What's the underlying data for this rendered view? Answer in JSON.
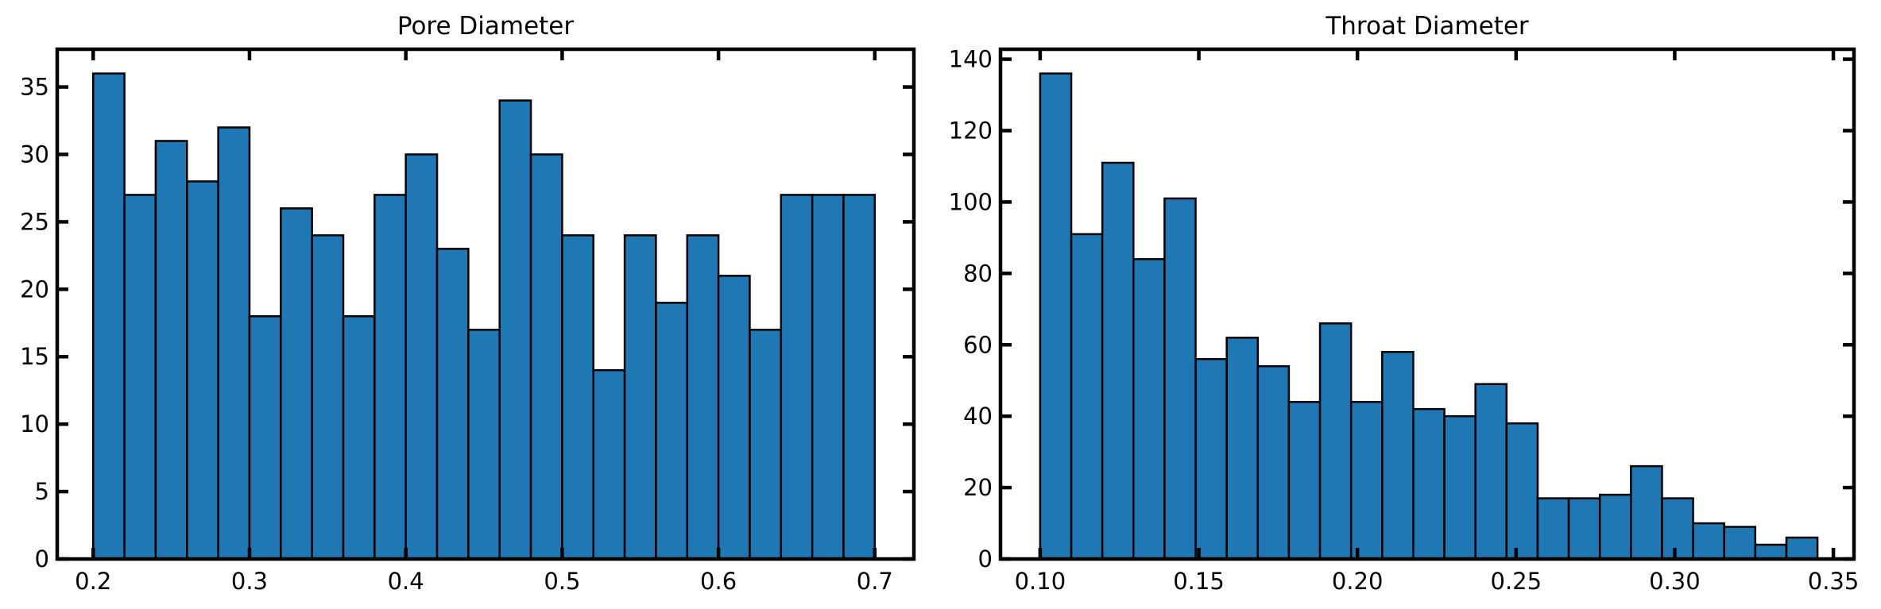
{
  "chart_data": [
    {
      "type": "bar",
      "title": "Pore Diameter",
      "xlabel": "",
      "ylabel": "",
      "xlim": [
        0.177,
        0.725
      ],
      "ylim": [
        0,
        37.8
      ],
      "bar_color": "#1f77b4",
      "edge_color": "#000000",
      "grid": false,
      "bin_edges": [
        0.2,
        0.22,
        0.24,
        0.26,
        0.28,
        0.3,
        0.32,
        0.34,
        0.36,
        0.38,
        0.4,
        0.42,
        0.44,
        0.46,
        0.48,
        0.5,
        0.52,
        0.54,
        0.56,
        0.58,
        0.6,
        0.62,
        0.64,
        0.66,
        0.68,
        0.7
      ],
      "values": [
        36,
        27,
        31,
        28,
        32,
        18,
        26,
        24,
        18,
        27,
        30,
        23,
        17,
        34,
        30,
        24,
        14,
        24,
        19,
        24,
        21,
        17,
        27,
        27,
        27
      ],
      "xticks": [
        "0.2",
        "0.3",
        "0.4",
        "0.5",
        "0.6",
        "0.7"
      ],
      "xtick_values": [
        0.2,
        0.3,
        0.4,
        0.5,
        0.6,
        0.7
      ],
      "yticks": [
        "0",
        "5",
        "10",
        "15",
        "20",
        "25",
        "30",
        "35"
      ],
      "ytick_values": [
        0,
        5,
        10,
        15,
        20,
        25,
        30,
        35
      ]
    },
    {
      "type": "bar",
      "title": "Throat Diameter",
      "xlabel": "",
      "ylabel": "",
      "xlim": [
        0.0875,
        0.3565
      ],
      "ylim": [
        0,
        142.8
      ],
      "bar_color": "#1f77b4",
      "edge_color": "#000000",
      "grid": false,
      "bin_edges": [
        0.1,
        0.1098,
        0.1196,
        0.1294,
        0.1392,
        0.149,
        0.1588,
        0.1686,
        0.1784,
        0.1882,
        0.198,
        0.2078,
        0.2176,
        0.2274,
        0.2372,
        0.247,
        0.2568,
        0.2666,
        0.2764,
        0.2862,
        0.296,
        0.3058,
        0.3156,
        0.3254,
        0.3352,
        0.345
      ],
      "values": [
        136,
        91,
        111,
        84,
        101,
        56,
        62,
        54,
        44,
        66,
        44,
        58,
        42,
        40,
        49,
        38,
        17,
        17,
        18,
        26,
        17,
        10,
        9,
        4,
        6
      ],
      "xticks": [
        "0.10",
        "0.15",
        "0.20",
        "0.25",
        "0.30",
        "0.35"
      ],
      "xtick_values": [
        0.1,
        0.15,
        0.2,
        0.25,
        0.3,
        0.35
      ],
      "yticks": [
        "0",
        "20",
        "40",
        "60",
        "80",
        "100",
        "120",
        "140"
      ],
      "ytick_values": [
        0,
        20,
        40,
        60,
        80,
        100,
        120,
        140
      ]
    }
  ]
}
